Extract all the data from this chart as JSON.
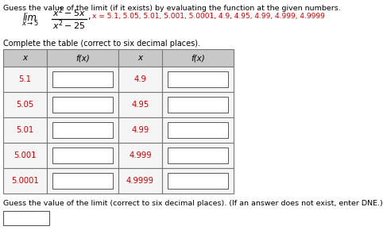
{
  "title": "Guess the value of the limit (if it exists) by evaluating the function at the given numbers.",
  "x_values_red": "x = 5.1, 5.05, 5.01, 5.001, 5.0001, 4.9, 4.95, 4.99, 4.999, 4.9999",
  "table_instruction": "Complete the table (correct to six decimal places).",
  "col_headers": [
    "x",
    "f(x)",
    "x",
    "f(x)"
  ],
  "left_x": [
    "5.1",
    "5.05",
    "5.01",
    "5.001",
    "5.0001"
  ],
  "right_x": [
    "4.9",
    "4.95",
    "4.99",
    "4.999",
    "4.9999"
  ],
  "guess_label": "Guess the value of the limit (correct to six decimal places). (If an answer does not exist, enter DNE.)",
  "header_bg": "#c8c8c8",
  "row_bg": "#f5f5f5",
  "x_color": "#cc0000",
  "border_color": "#777777",
  "fig_w": 4.82,
  "fig_h": 2.9,
  "dpi": 100
}
